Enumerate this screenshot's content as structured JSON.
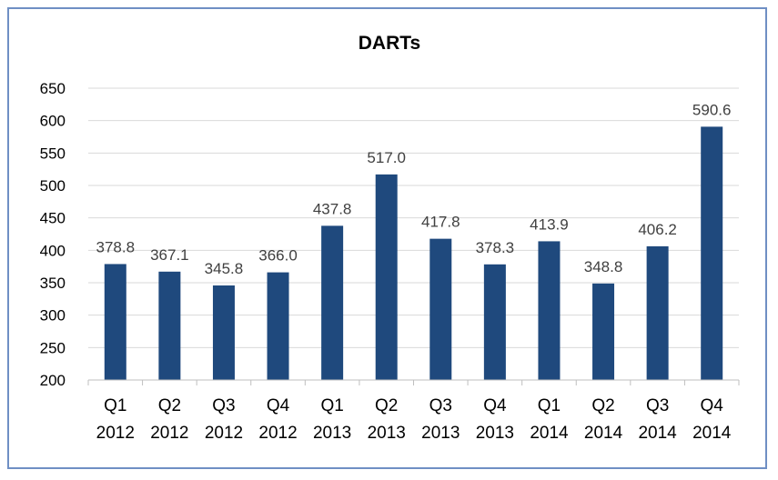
{
  "chart_data": {
    "type": "bar",
    "title": "DARTs",
    "xlabel": "",
    "ylabel": "",
    "categories": [
      [
        "Q1",
        "2012"
      ],
      [
        "Q2",
        "2012"
      ],
      [
        "Q3",
        "2012"
      ],
      [
        "Q4",
        "2012"
      ],
      [
        "Q1",
        "2013"
      ],
      [
        "Q2",
        "2013"
      ],
      [
        "Q3",
        "2013"
      ],
      [
        "Q4",
        "2013"
      ],
      [
        "Q1",
        "2014"
      ],
      [
        "Q2",
        "2014"
      ],
      [
        "Q3",
        "2014"
      ],
      [
        "Q4",
        "2014"
      ]
    ],
    "values": [
      378.8,
      367.1,
      345.8,
      366.0,
      437.8,
      517.0,
      417.8,
      378.3,
      413.9,
      348.8,
      406.2,
      590.6
    ],
    "data_labels": [
      "378.8",
      "367.1",
      "345.8",
      "366.0",
      "437.8",
      "517.0",
      "417.8",
      "378.3",
      "413.9",
      "348.8",
      "406.2",
      "590.6"
    ],
    "ylim": [
      200,
      650
    ],
    "yticks": [
      200,
      250,
      300,
      350,
      400,
      450,
      500,
      550,
      600,
      650
    ],
    "grid": true,
    "legend": "none",
    "colors": {
      "bar": "#1f497d",
      "grid": "#d9d9d9",
      "frame": "#6f8fc4",
      "axis": "#bfbfbf"
    }
  }
}
